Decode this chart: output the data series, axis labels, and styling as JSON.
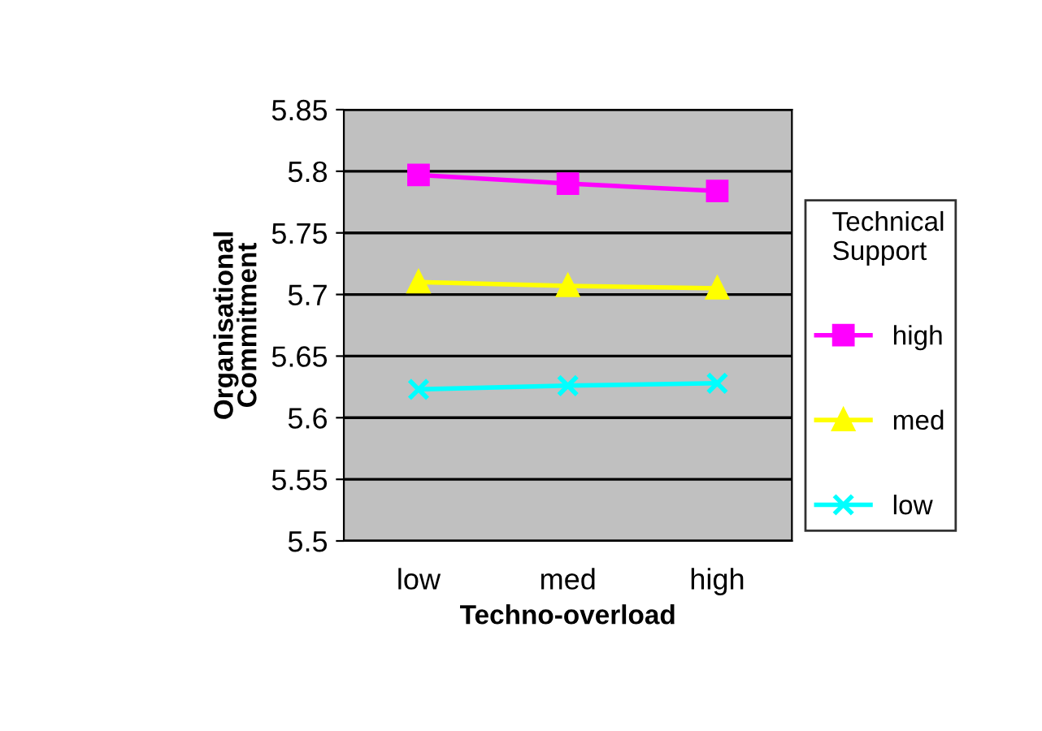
{
  "chart_data": {
    "type": "line",
    "xlabel": "Techno-overload",
    "ylabel": "Organisational\nCommitment",
    "legend_title": "Technical\nSupport",
    "categories": [
      "low",
      "med",
      "high"
    ],
    "series": [
      {
        "name": "high",
        "color": "#ff00ff",
        "marker": "square",
        "values": [
          5.797,
          5.79,
          5.784
        ]
      },
      {
        "name": "med",
        "color": "#ffff00",
        "marker": "triangle",
        "values": [
          5.71,
          5.707,
          5.705
        ]
      },
      {
        "name": "low",
        "color": "#00ffff",
        "marker": "cross",
        "values": [
          5.623,
          5.626,
          5.628
        ]
      }
    ],
    "ylim": [
      5.5,
      5.85
    ],
    "yticks": [
      5.5,
      5.55,
      5.6,
      5.65,
      5.7,
      5.75,
      5.8,
      5.85
    ],
    "grid": "y",
    "legend": "right"
  }
}
